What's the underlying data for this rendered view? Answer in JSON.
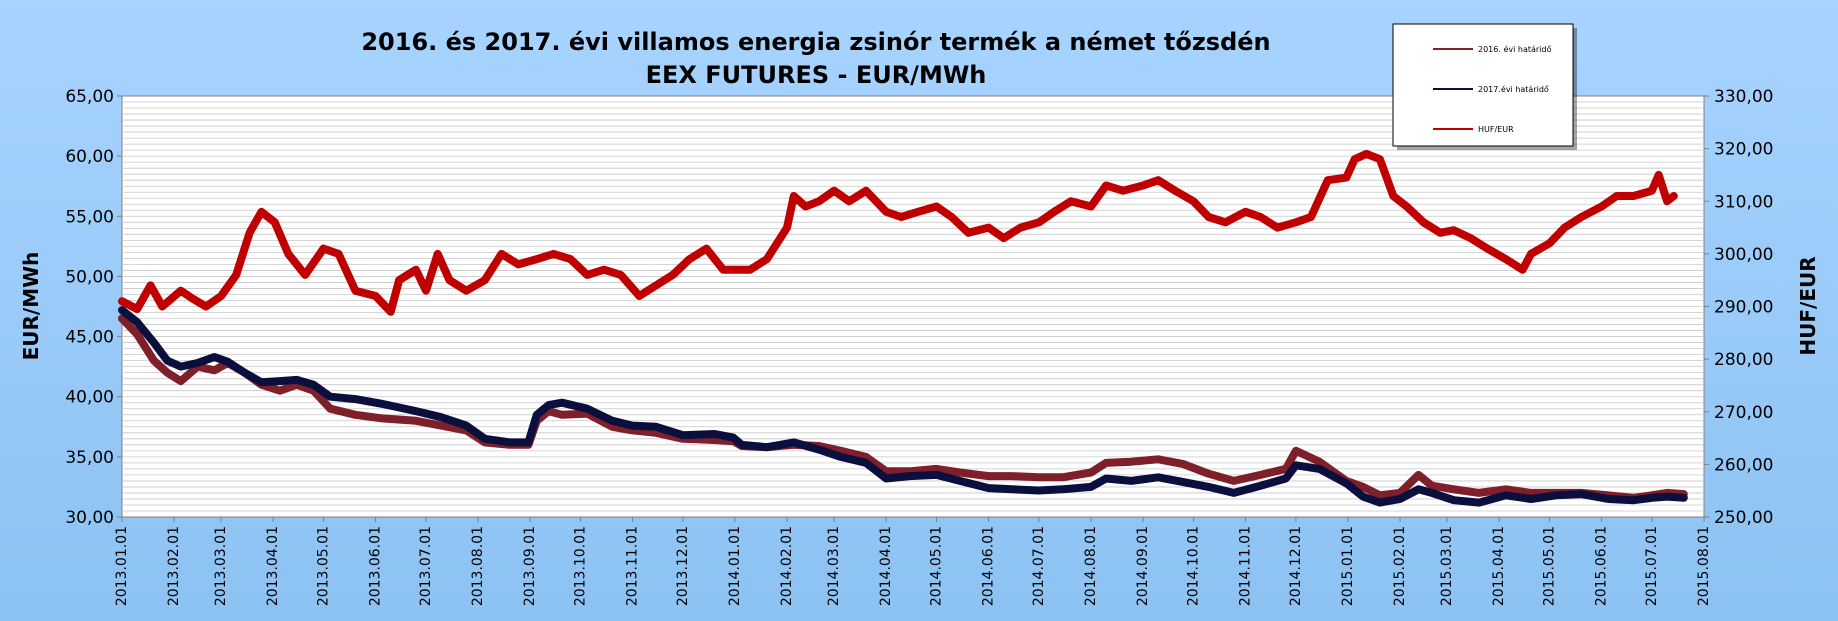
{
  "chart_data": {
    "type": "line",
    "title_line1": "2016. és 2017. évi villamos energia zsinór termék a német tőzsdén",
    "title_line2": "EEX FUTURES - EUR/MWh",
    "ylabel_left": "EUR/MWh",
    "ylabel_right": "HUF/EUR",
    "ylim_left": [
      30,
      65
    ],
    "ylim_right": [
      250,
      330
    ],
    "grid": true,
    "legend_position": "top-right",
    "x_tick_labels": [
      "2013.01.01",
      "2013.02.01",
      "2013.03.01",
      "2013.04.01",
      "2013.05.01",
      "2013.06.01",
      "2013.07.01",
      "2013.08.01",
      "2013.09.01",
      "2013.10.01",
      "2013.11.01",
      "2013.12.01",
      "2014.01.01",
      "2014.02.01",
      "2014.03.01",
      "2014.04.01",
      "2014.05.01",
      "2014.06.01",
      "2014.07.01",
      "2014.08.01",
      "2014.09.01",
      "2014.10.01",
      "2014.11.01",
      "2014.12.01",
      "2015.01.01",
      "2015.02.01",
      "2015.03.01",
      "2015.04.01",
      "2015.05.01",
      "2015.06.01",
      "2015.07.01",
      "2015.08.01"
    ],
    "y_left_tick_labels": [
      "30,00",
      "35,00",
      "40,00",
      "45,00",
      "50,00",
      "55,00",
      "60,00",
      "65,00"
    ],
    "y_right_tick_labels": [
      "250,00",
      "260,00",
      "270,00",
      "280,00",
      "290,00",
      "300,00",
      "310,00",
      "320,00",
      "330,00"
    ],
    "series": [
      {
        "name": "2016. évi határidő",
        "axis": "left",
        "color": "#7f1f2a",
        "points": [
          [
            "2013-01-01",
            46.5
          ],
          [
            "2013-01-10",
            45.2
          ],
          [
            "2013-01-20",
            43.0
          ],
          [
            "2013-01-28",
            42.0
          ],
          [
            "2013-02-05",
            41.3
          ],
          [
            "2013-02-15",
            42.5
          ],
          [
            "2013-02-25",
            42.2
          ],
          [
            "2013-03-05",
            42.8
          ],
          [
            "2013-03-15",
            42.0
          ],
          [
            "2013-03-25",
            41.0
          ],
          [
            "2013-04-05",
            40.5
          ],
          [
            "2013-04-15",
            41.0
          ],
          [
            "2013-04-25",
            40.5
          ],
          [
            "2013-05-05",
            39.0
          ],
          [
            "2013-05-20",
            38.5
          ],
          [
            "2013-06-05",
            38.2
          ],
          [
            "2013-06-25",
            38.0
          ],
          [
            "2013-07-10",
            37.6
          ],
          [
            "2013-07-25",
            37.2
          ],
          [
            "2013-08-05",
            36.2
          ],
          [
            "2013-08-20",
            36.0
          ],
          [
            "2013-08-31",
            36.0
          ],
          [
            "2013-09-05",
            38.0
          ],
          [
            "2013-09-12",
            38.8
          ],
          [
            "2013-09-20",
            38.5
          ],
          [
            "2013-10-05",
            38.6
          ],
          [
            "2013-10-20",
            37.5
          ],
          [
            "2013-11-01",
            37.2
          ],
          [
            "2013-11-15",
            37.0
          ],
          [
            "2013-12-01",
            36.5
          ],
          [
            "2013-12-20",
            36.4
          ],
          [
            "2013-12-31",
            36.3
          ],
          [
            "2014-01-05",
            35.9
          ],
          [
            "2014-01-20",
            35.8
          ],
          [
            "2014-02-05",
            36.0
          ],
          [
            "2014-02-20",
            35.9
          ],
          [
            "2014-03-05",
            35.5
          ],
          [
            "2014-03-20",
            35.0
          ],
          [
            "2014-04-01",
            33.8
          ],
          [
            "2014-04-15",
            33.8
          ],
          [
            "2014-05-01",
            34.0
          ],
          [
            "2014-05-15",
            33.7
          ],
          [
            "2014-06-01",
            33.4
          ],
          [
            "2014-06-15",
            33.4
          ],
          [
            "2014-07-01",
            33.3
          ],
          [
            "2014-07-15",
            33.3
          ],
          [
            "2014-08-01",
            33.7
          ],
          [
            "2014-08-10",
            34.5
          ],
          [
            "2014-08-25",
            34.6
          ],
          [
            "2014-09-10",
            34.8
          ],
          [
            "2014-09-25",
            34.4
          ],
          [
            "2014-10-10",
            33.6
          ],
          [
            "2014-10-25",
            33.0
          ],
          [
            "2014-11-10",
            33.5
          ],
          [
            "2014-11-25",
            34.0
          ],
          [
            "2014-12-01",
            35.5
          ],
          [
            "2014-12-15",
            34.6
          ],
          [
            "2014-12-31",
            33.0
          ],
          [
            "2015-01-10",
            32.5
          ],
          [
            "2015-01-20",
            31.8
          ],
          [
            "2015-02-01",
            32.0
          ],
          [
            "2015-02-12",
            33.5
          ],
          [
            "2015-02-20",
            32.6
          ],
          [
            "2015-03-05",
            32.3
          ],
          [
            "2015-03-20",
            32.0
          ],
          [
            "2015-04-05",
            32.3
          ],
          [
            "2015-04-20",
            32.0
          ],
          [
            "2015-05-05",
            32.0
          ],
          [
            "2015-05-20",
            32.0
          ],
          [
            "2015-06-05",
            31.8
          ],
          [
            "2015-06-20",
            31.6
          ],
          [
            "2015-07-01",
            31.8
          ],
          [
            "2015-07-10",
            32.0
          ],
          [
            "2015-07-20",
            31.9
          ]
        ]
      },
      {
        "name": "2017.évi határidő",
        "axis": "left",
        "color": "#0a0f3d",
        "points": [
          [
            "2013-01-01",
            47.2
          ],
          [
            "2013-01-10",
            46.2
          ],
          [
            "2013-01-20",
            44.5
          ],
          [
            "2013-01-28",
            43.0
          ],
          [
            "2013-02-05",
            42.5
          ],
          [
            "2013-02-15",
            42.8
          ],
          [
            "2013-02-25",
            43.3
          ],
          [
            "2013-03-05",
            42.9
          ],
          [
            "2013-03-15",
            42.0
          ],
          [
            "2013-03-25",
            41.2
          ],
          [
            "2013-04-05",
            41.3
          ],
          [
            "2013-04-15",
            41.4
          ],
          [
            "2013-04-25",
            41.0
          ],
          [
            "2013-05-05",
            40.0
          ],
          [
            "2013-05-20",
            39.8
          ],
          [
            "2013-06-05",
            39.4
          ],
          [
            "2013-06-25",
            38.8
          ],
          [
            "2013-07-10",
            38.3
          ],
          [
            "2013-07-25",
            37.6
          ],
          [
            "2013-08-05",
            36.5
          ],
          [
            "2013-08-20",
            36.2
          ],
          [
            "2013-08-31",
            36.2
          ],
          [
            "2013-09-05",
            38.5
          ],
          [
            "2013-09-12",
            39.3
          ],
          [
            "2013-09-20",
            39.5
          ],
          [
            "2013-10-05",
            39.0
          ],
          [
            "2013-10-20",
            38.0
          ],
          [
            "2013-11-01",
            37.6
          ],
          [
            "2013-11-15",
            37.5
          ],
          [
            "2013-12-01",
            36.8
          ],
          [
            "2013-12-20",
            36.9
          ],
          [
            "2013-12-31",
            36.6
          ],
          [
            "2014-01-05",
            36.0
          ],
          [
            "2014-01-20",
            35.8
          ],
          [
            "2014-02-05",
            36.2
          ],
          [
            "2014-02-20",
            35.6
          ],
          [
            "2014-03-05",
            35.0
          ],
          [
            "2014-03-20",
            34.5
          ],
          [
            "2014-04-01",
            33.2
          ],
          [
            "2014-04-15",
            33.4
          ],
          [
            "2014-05-01",
            33.5
          ],
          [
            "2014-05-15",
            33.0
          ],
          [
            "2014-06-01",
            32.4
          ],
          [
            "2014-06-15",
            32.3
          ],
          [
            "2014-07-01",
            32.2
          ],
          [
            "2014-07-15",
            32.3
          ],
          [
            "2014-08-01",
            32.5
          ],
          [
            "2014-08-10",
            33.2
          ],
          [
            "2014-08-25",
            33.0
          ],
          [
            "2014-09-10",
            33.3
          ],
          [
            "2014-09-25",
            32.9
          ],
          [
            "2014-10-10",
            32.5
          ],
          [
            "2014-10-25",
            32.0
          ],
          [
            "2014-11-10",
            32.6
          ],
          [
            "2014-11-25",
            33.2
          ],
          [
            "2014-12-01",
            34.3
          ],
          [
            "2014-12-15",
            34.0
          ],
          [
            "2014-12-31",
            32.8
          ],
          [
            "2015-01-10",
            31.7
          ],
          [
            "2015-01-20",
            31.2
          ],
          [
            "2015-02-01",
            31.5
          ],
          [
            "2015-02-12",
            32.3
          ],
          [
            "2015-02-20",
            32.0
          ],
          [
            "2015-03-05",
            31.4
          ],
          [
            "2015-03-20",
            31.2
          ],
          [
            "2015-04-05",
            31.8
          ],
          [
            "2015-04-20",
            31.5
          ],
          [
            "2015-05-05",
            31.8
          ],
          [
            "2015-05-20",
            31.9
          ],
          [
            "2015-06-05",
            31.5
          ],
          [
            "2015-06-20",
            31.4
          ],
          [
            "2015-07-01",
            31.6
          ],
          [
            "2015-07-10",
            31.7
          ],
          [
            "2015-07-20",
            31.6
          ]
        ]
      },
      {
        "name": "HUF/EUR",
        "axis": "right",
        "color": "#c00000",
        "points": [
          [
            "2013-01-01",
            291.0
          ],
          [
            "2013-01-10",
            289.5
          ],
          [
            "2013-01-18",
            294.0
          ],
          [
            "2013-01-25",
            290.0
          ],
          [
            "2013-02-05",
            293.0
          ],
          [
            "2013-02-12",
            291.5
          ],
          [
            "2013-02-20",
            290.0
          ],
          [
            "2013-03-01",
            292.0
          ],
          [
            "2013-03-10",
            296.0
          ],
          [
            "2013-03-18",
            304.0
          ],
          [
            "2013-03-25",
            308.0
          ],
          [
            "2013-04-02",
            306.0
          ],
          [
            "2013-04-10",
            300.0
          ],
          [
            "2013-04-20",
            296.0
          ],
          [
            "2013-05-01",
            301.0
          ],
          [
            "2013-05-10",
            300.0
          ],
          [
            "2013-05-20",
            293.0
          ],
          [
            "2013-06-01",
            292.0
          ],
          [
            "2013-06-10",
            289.0
          ],
          [
            "2013-06-15",
            295.0
          ],
          [
            "2013-06-25",
            297.0
          ],
          [
            "2013-07-01",
            293.0
          ],
          [
            "2013-07-08",
            300.0
          ],
          [
            "2013-07-15",
            295.0
          ],
          [
            "2013-07-25",
            293.0
          ],
          [
            "2013-08-05",
            295.0
          ],
          [
            "2013-08-15",
            300.0
          ],
          [
            "2013-08-25",
            298.0
          ],
          [
            "2013-09-05",
            299.0
          ],
          [
            "2013-09-15",
            300.0
          ],
          [
            "2013-09-25",
            299.0
          ],
          [
            "2013-10-05",
            296.0
          ],
          [
            "2013-10-15",
            297.0
          ],
          [
            "2013-10-25",
            296.0
          ],
          [
            "2013-11-05",
            292.0
          ],
          [
            "2013-11-15",
            294.0
          ],
          [
            "2013-11-25",
            296.0
          ],
          [
            "2013-12-05",
            299.0
          ],
          [
            "2013-12-15",
            301.0
          ],
          [
            "2013-12-25",
            297.0
          ],
          [
            "2014-01-01",
            297.0
          ],
          [
            "2014-01-10",
            297.0
          ],
          [
            "2014-01-20",
            299.0
          ],
          [
            "2014-02-01",
            305.0
          ],
          [
            "2014-02-05",
            311.0
          ],
          [
            "2014-02-12",
            309.0
          ],
          [
            "2014-02-20",
            310.0
          ],
          [
            "2014-03-01",
            312.0
          ],
          [
            "2014-03-10",
            310.0
          ],
          [
            "2014-03-20",
            312.0
          ],
          [
            "2014-04-01",
            308.0
          ],
          [
            "2014-04-10",
            307.0
          ],
          [
            "2014-04-20",
            308.0
          ],
          [
            "2014-05-01",
            309.0
          ],
          [
            "2014-05-10",
            307.0
          ],
          [
            "2014-05-20",
            304.0
          ],
          [
            "2014-06-01",
            305.0
          ],
          [
            "2014-06-10",
            303.0
          ],
          [
            "2014-06-20",
            305.0
          ],
          [
            "2014-07-01",
            306.0
          ],
          [
            "2014-07-10",
            308.0
          ],
          [
            "2014-07-20",
            310.0
          ],
          [
            "2014-08-01",
            309.0
          ],
          [
            "2014-08-10",
            313.0
          ],
          [
            "2014-08-20",
            312.0
          ],
          [
            "2014-09-01",
            313.0
          ],
          [
            "2014-09-10",
            314.0
          ],
          [
            "2014-09-20",
            312.0
          ],
          [
            "2014-10-01",
            310.0
          ],
          [
            "2014-10-10",
            307.0
          ],
          [
            "2014-10-20",
            306.0
          ],
          [
            "2014-11-01",
            308.0
          ],
          [
            "2014-11-10",
            307.0
          ],
          [
            "2014-11-20",
            305.0
          ],
          [
            "2014-12-01",
            306.0
          ],
          [
            "2014-12-10",
            307.0
          ],
          [
            "2014-12-20",
            314.0
          ],
          [
            "2014-12-31",
            314.5
          ],
          [
            "2015-01-05",
            318.0
          ],
          [
            "2015-01-12",
            319.0
          ],
          [
            "2015-01-20",
            318.0
          ],
          [
            "2015-01-28",
            311.0
          ],
          [
            "2015-02-05",
            309.0
          ],
          [
            "2015-02-15",
            306.0
          ],
          [
            "2015-02-25",
            304.0
          ],
          [
            "2015-03-05",
            304.5
          ],
          [
            "2015-03-15",
            303.0
          ],
          [
            "2015-03-25",
            301.0
          ],
          [
            "2015-04-05",
            299.0
          ],
          [
            "2015-04-15",
            297.0
          ],
          [
            "2015-04-20",
            300.0
          ],
          [
            "2015-05-01",
            302.0
          ],
          [
            "2015-05-10",
            305.0
          ],
          [
            "2015-05-20",
            307.0
          ],
          [
            "2015-06-01",
            309.0
          ],
          [
            "2015-06-10",
            311.0
          ],
          [
            "2015-06-20",
            311.0
          ],
          [
            "2015-07-01",
            312.0
          ],
          [
            "2015-07-05",
            315.0
          ],
          [
            "2015-07-10",
            310.0
          ],
          [
            "2015-07-14",
            311.0
          ]
        ]
      }
    ]
  }
}
